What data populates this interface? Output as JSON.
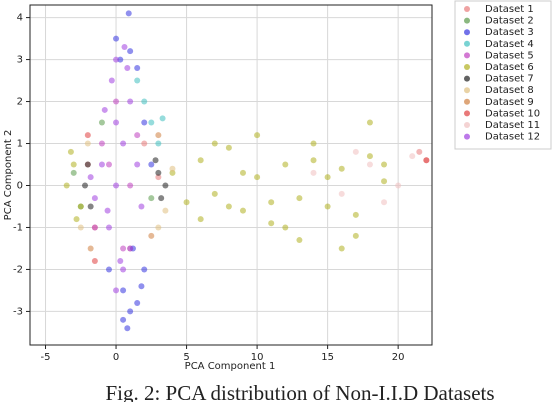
{
  "chart_data": {
    "type": "scatter",
    "xlabel": "PCA Component 1",
    "ylabel": "PCA Component 2",
    "caption": "Fig. 2: PCA distribution of Non-I.I.D Datasets",
    "xlim": [
      -6.1,
      22.4
    ],
    "ylim": [
      -3.8,
      4.3
    ],
    "xticks": [
      -5,
      0,
      5,
      10,
      15,
      20
    ],
    "yticks": [
      -3,
      -2,
      -1,
      0,
      1,
      2,
      3,
      4
    ],
    "grid": true,
    "legend": "upper right",
    "series": [
      {
        "name": "Dataset 1",
        "color": "#e87a7a",
        "x": [
          -2,
          -1.5,
          1,
          2,
          3,
          21.5,
          22
        ],
        "y": [
          0.5,
          -1,
          -1.5,
          1,
          0.2,
          0.8,
          0.6
        ]
      },
      {
        "name": "Dataset 2",
        "color": "#5a9a4a",
        "x": [
          -3,
          -2.5,
          -1,
          2.5
        ],
        "y": [
          0.3,
          -0.5,
          1.5,
          -0.3
        ]
      },
      {
        "name": "Dataset 3",
        "color": "#3434e0",
        "x": [
          0,
          0.5,
          1,
          1.5,
          2,
          -0.5,
          1,
          2,
          0.8,
          1.5,
          0.3,
          1.2,
          2.5,
          0.9,
          1.8,
          0.5
        ],
        "y": [
          3.5,
          -2.5,
          -3,
          2.8,
          -2,
          -2,
          3.2,
          1.5,
          -3.4,
          -2.8,
          3,
          -1.5,
          0.5,
          4.1,
          -2.4,
          -3.2
        ]
      },
      {
        "name": "Dataset 4",
        "color": "#40c0c0",
        "x": [
          2,
          2.5,
          3,
          1.5,
          3.3
        ],
        "y": [
          2,
          1.5,
          1,
          2.5,
          1.6
        ]
      },
      {
        "name": "Dataset 5",
        "color": "#c040c0",
        "x": [
          -1,
          0,
          1,
          -1.5,
          0.5,
          1.5,
          -0.5
        ],
        "y": [
          1,
          2,
          0,
          -1,
          -1.5,
          1.2,
          0.5
        ]
      },
      {
        "name": "Dataset 6",
        "color": "#b0b020",
        "x": [
          -3.5,
          -3,
          -2.5,
          -3.2,
          -2.8,
          4,
          5,
          6,
          7,
          8,
          9,
          10,
          11,
          12,
          13,
          14,
          15,
          16,
          17,
          18,
          19,
          6,
          8,
          10,
          12,
          14,
          16,
          18,
          7,
          9,
          11,
          13,
          15,
          17,
          19
        ],
        "y": [
          0,
          0.5,
          -0.5,
          0.8,
          -0.8,
          0.3,
          -0.4,
          0.6,
          -0.2,
          0.9,
          -0.6,
          0.2,
          -0.9,
          0.5,
          -0.3,
          1,
          -0.5,
          0.4,
          -1.2,
          0.7,
          0.1,
          -0.8,
          -0.5,
          1.2,
          -1,
          0.6,
          -1.5,
          1.5,
          1.0,
          0.3,
          -0.4,
          -1.3,
          0.2,
          -0.7,
          0.5
        ]
      },
      {
        "name": "Dataset 7",
        "color": "#202020",
        "x": [
          -2,
          -1.8,
          -2.2,
          3,
          3.2,
          2.8,
          3.5
        ],
        "y": [
          0.5,
          -0.5,
          0,
          0.3,
          -0.3,
          0.6,
          0
        ]
      },
      {
        "name": "Dataset 8",
        "color": "#e0c080",
        "x": [
          -2.5,
          -2,
          3,
          4,
          3.5
        ],
        "y": [
          -1,
          1,
          -1,
          0.4,
          -0.6
        ]
      },
      {
        "name": "Dataset 9",
        "color": "#d08040",
        "x": [
          -1.8,
          2.5,
          3
        ],
        "y": [
          -1.5,
          -1.2,
          1.2
        ]
      },
      {
        "name": "Dataset 10",
        "color": "#e04040",
        "x": [
          -1.5,
          22,
          -2
        ],
        "y": [
          -1.8,
          0.6,
          1.2
        ]
      },
      {
        "name": "Dataset 11",
        "color": "#f0c0c0",
        "x": [
          14,
          16,
          18,
          20,
          17,
          19,
          21
        ],
        "y": [
          0.3,
          -0.2,
          0.5,
          0,
          0.8,
          -0.4,
          0.7
        ]
      },
      {
        "name": "Dataset 12",
        "color": "#a040e0",
        "x": [
          0,
          0.5,
          -0.5,
          1,
          -1,
          0,
          0.5,
          1.5,
          -1.5,
          0,
          1,
          -0.8,
          0.8,
          0,
          -0.3,
          0.3,
          1.8,
          -1.8,
          0.6,
          -0.6
        ],
        "y": [
          0,
          1,
          -1,
          2,
          0.5,
          3,
          -2,
          0.5,
          -0.3,
          -2.5,
          -1.5,
          1.8,
          2.8,
          1.5,
          2.5,
          -1.8,
          -0.5,
          0.2,
          3.3,
          -0.6
        ]
      }
    ]
  }
}
